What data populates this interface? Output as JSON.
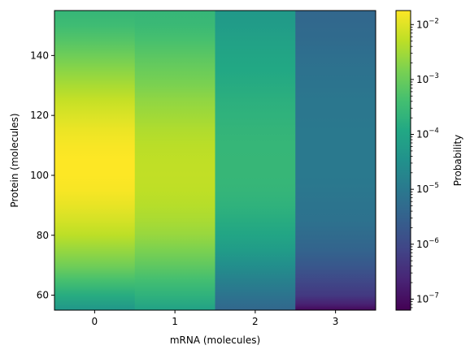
{
  "chart_data": {
    "type": "heatmap",
    "xlabel": "mRNA (molecules)",
    "ylabel": "Protein (molecules)",
    "colorbar_label": "Probability",
    "colormap": "viridis",
    "color_scale": "log",
    "x_categories": [
      0,
      1,
      2,
      3
    ],
    "x_tick_labels": [
      "0",
      "1",
      "2",
      "3"
    ],
    "y_ticks": [
      60,
      80,
      100,
      120,
      140
    ],
    "y_tick_labels": [
      "60",
      "80",
      "100",
      "120",
      "140"
    ],
    "ylim": [
      55,
      155
    ],
    "colorbar_range": [
      6.3e-08,
      0.018
    ],
    "colorbar_major_ticks": [
      1e-07,
      1e-06,
      1e-05,
      0.0001,
      0.001,
      0.01
    ],
    "colorbar_tick_labels": [
      {
        "base": "10",
        "exp": "−7"
      },
      {
        "base": "10",
        "exp": "−6"
      },
      {
        "base": "10",
        "exp": "−5"
      },
      {
        "base": "10",
        "exp": "−4"
      },
      {
        "base": "10",
        "exp": "−3"
      },
      {
        "base": "10",
        "exp": "−2"
      }
    ],
    "column_profiles": [
      {
        "mrna": 0,
        "protein": [
          55,
          60,
          65,
          70,
          75,
          80,
          85,
          90,
          95,
          100,
          105,
          110,
          115,
          120,
          125,
          130,
          135,
          140,
          145,
          150,
          155
        ],
        "probability": [
          4.5e-05,
          0.00015,
          0.00045,
          0.0012,
          0.0025,
          0.005,
          0.008,
          0.012,
          0.016,
          0.018,
          0.018,
          0.016,
          0.013,
          0.009,
          0.006,
          0.0035,
          0.002,
          0.0011,
          0.0006,
          0.00035,
          0.00025
        ]
      },
      {
        "mrna": 1,
        "protein": [
          55,
          60,
          65,
          70,
          75,
          80,
          85,
          90,
          95,
          100,
          105,
          110,
          115,
          120,
          125,
          130,
          135,
          140,
          145,
          150,
          155
        ],
        "probability": [
          8e-05,
          0.0002,
          0.0004,
          0.0008,
          0.0015,
          0.0025,
          0.0035,
          0.0045,
          0.0052,
          0.0055,
          0.0053,
          0.0048,
          0.004,
          0.003,
          0.0022,
          0.0015,
          0.001,
          0.0007,
          0.00045,
          0.0003,
          0.00025
        ]
      },
      {
        "mrna": 2,
        "protein": [
          55,
          60,
          65,
          70,
          75,
          80,
          85,
          90,
          95,
          100,
          105,
          110,
          115,
          120,
          125,
          130,
          135,
          140,
          145,
          150,
          155
        ],
        "probability": [
          4e-06,
          8e-06,
          1.5e-05,
          3e-05,
          6e-05,
          0.0001,
          0.00015,
          0.0002,
          0.00024,
          0.00026,
          0.00026,
          0.00025,
          0.00023,
          0.0002,
          0.00017,
          0.00014,
          0.00012,
          0.0001,
          8e-05,
          6e-05,
          5e-05
        ]
      },
      {
        "mrna": 3,
        "protein": [
          55,
          57,
          60,
          65,
          70,
          75,
          80,
          85,
          90,
          95,
          100,
          105,
          110,
          115,
          120,
          125,
          130,
          135,
          140,
          145,
          150,
          155
        ],
        "probability": [
          8e-08,
          2e-07,
          5e-07,
          1e-06,
          2e-06,
          3.5e-06,
          5e-06,
          7e-06,
          8e-06,
          9e-06,
          1e-05,
          1e-05,
          1e-05,
          1e-05,
          9e-06,
          9e-06,
          8e-06,
          7e-06,
          6e-06,
          5e-06,
          4.5e-06,
          4e-06
        ]
      }
    ]
  }
}
